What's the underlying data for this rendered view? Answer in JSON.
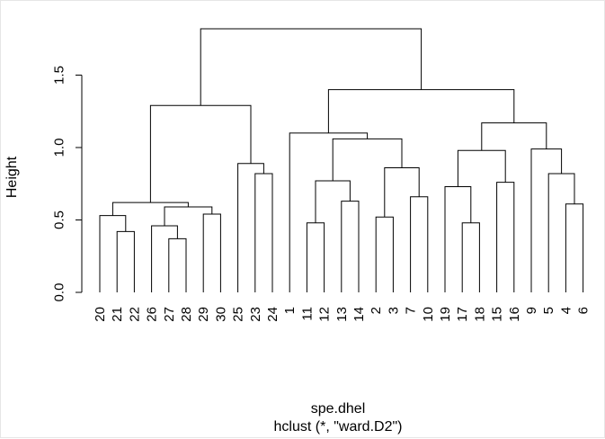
{
  "chart_data": {
    "type": "dendrogram",
    "ylabel": "Height",
    "xlabel": "spe.dhel",
    "subtitle": "hclust (*, \"ward.D2\")",
    "ylim": [
      0,
      1.8
    ],
    "yticks": [
      "0.0",
      "0.5",
      "1.0",
      "1.5"
    ],
    "ytick_values": [
      0.0,
      0.5,
      1.0,
      1.5
    ],
    "grid": false,
    "leaves": [
      "20",
      "21",
      "22",
      "26",
      "27",
      "28",
      "29",
      "30",
      "25",
      "23",
      "24",
      "1",
      "11",
      "12",
      "13",
      "14",
      "2",
      "3",
      "7",
      "10",
      "19",
      "17",
      "18",
      "15",
      "16",
      "9",
      "5",
      "4",
      "6"
    ],
    "merges": [
      {
        "left": "20",
        "right": "G21_22",
        "height": 0.53
      },
      {
        "left": "21",
        "right": "22",
        "height": 0.42,
        "id": "G21_22"
      },
      {
        "left": "27",
        "right": "28",
        "height": 0.37,
        "id": "G27_28"
      },
      {
        "left": "26",
        "right": "G27_28",
        "height": 0.46,
        "id": "G26_28"
      },
      {
        "left": "29",
        "right": "30",
        "height": 0.54,
        "id": "G29_30"
      },
      {
        "left": "G26_28",
        "right": "G29_30",
        "height": 0.59,
        "id": "G26_30"
      },
      {
        "left": "G20_22",
        "right": "G26_30",
        "height": 0.62,
        "id": "G20_30"
      },
      {
        "left": "23",
        "right": "24",
        "height": 0.82,
        "id": "G23_24"
      },
      {
        "left": "25",
        "right": "G23_24",
        "height": 0.89,
        "id": "G25_24"
      },
      {
        "left": "G20_30",
        "right": "G25_24",
        "height": 1.29,
        "id": "LEFT"
      },
      {
        "left": "11",
        "right": "12",
        "height": 0.48,
        "id": "G11_12"
      },
      {
        "left": "13",
        "right": "14",
        "height": 0.63,
        "id": "G13_14"
      },
      {
        "left": "G11_12",
        "right": "G13_14",
        "height": 0.77,
        "id": "G11_14"
      },
      {
        "left": "2",
        "right": "3",
        "height": 0.52,
        "id": "G2_3"
      },
      {
        "left": "7",
        "right": "10",
        "height": 0.66,
        "id": "G7_10"
      },
      {
        "left": "G2_3",
        "right": "G7_10",
        "height": 0.86,
        "id": "G2_10"
      },
      {
        "left": "G11_14",
        "right": "G2_10",
        "height": 1.06,
        "id": "G11_10"
      },
      {
        "left": "1",
        "right": "G11_10",
        "height": 1.1,
        "id": "G1_10"
      },
      {
        "left": "17",
        "right": "18",
        "height": 0.48,
        "id": "G17_18"
      },
      {
        "left": "19",
        "right": "G17_18",
        "height": 0.73,
        "id": "G19_18"
      },
      {
        "left": "15",
        "right": "16",
        "height": 0.76,
        "id": "G15_16"
      },
      {
        "left": "G19_18",
        "right": "G15_16",
        "height": 0.98,
        "id": "G19_16"
      },
      {
        "left": "4",
        "right": "6",
        "height": 0.61,
        "id": "G4_6"
      },
      {
        "left": "5",
        "right": "G4_6",
        "height": 0.82,
        "id": "G5_6"
      },
      {
        "left": "9",
        "right": "G5_6",
        "height": 0.99,
        "id": "G9_6"
      },
      {
        "left": "G19_16",
        "right": "G9_6",
        "height": 1.17,
        "id": "G19_6"
      },
      {
        "left": "G1_10",
        "right": "G19_6",
        "height": 1.4,
        "id": "RIGHT"
      },
      {
        "left": "LEFT",
        "right": "RIGHT",
        "height": 1.82,
        "id": "ROOT"
      }
    ]
  }
}
